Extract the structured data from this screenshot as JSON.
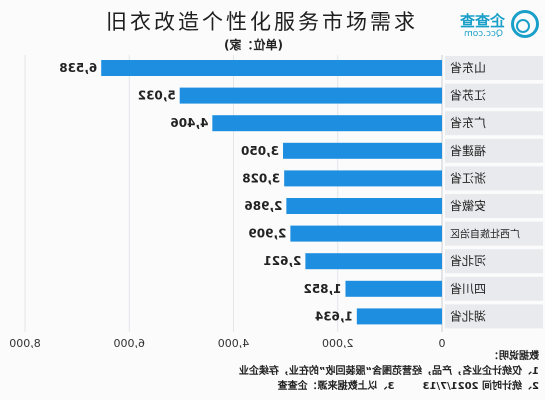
{
  "overlay_title": "旧衣改造个性化服务市场需求",
  "logo": {
    "name": "企查查",
    "domain": "Qcc.com"
  },
  "colors": {
    "bar": "#1e8fe0",
    "label_bg": "#e8eaee",
    "grid": "#e3e5e9",
    "logo": "#1aa0c8"
  },
  "chart_data": {
    "type": "bar",
    "orientation": "horizontal",
    "mirrored": true,
    "unit": "(单位：家)",
    "categories": [
      "山东省",
      "江苏省",
      "广东省",
      "福建省",
      "浙江省",
      "安徽省",
      "广西壮族自治区",
      "河北省",
      "四川省",
      "湖北省"
    ],
    "values": [
      6538,
      5032,
      4406,
      3050,
      3028,
      2986,
      2909,
      2621,
      1852,
      1634
    ],
    "xlim": [
      0,
      8000
    ],
    "xticks": [
      0,
      2000,
      4000,
      6000,
      8000
    ],
    "grid": true
  },
  "notes": {
    "heading": "数据说明：",
    "line1": "1、仅统计企业名，产品，经营范围含“服装回收”的在业，存续企业",
    "line2a": "2、统计时间 2021/7/13",
    "line2b": "3、以上数据来源：企查查"
  }
}
